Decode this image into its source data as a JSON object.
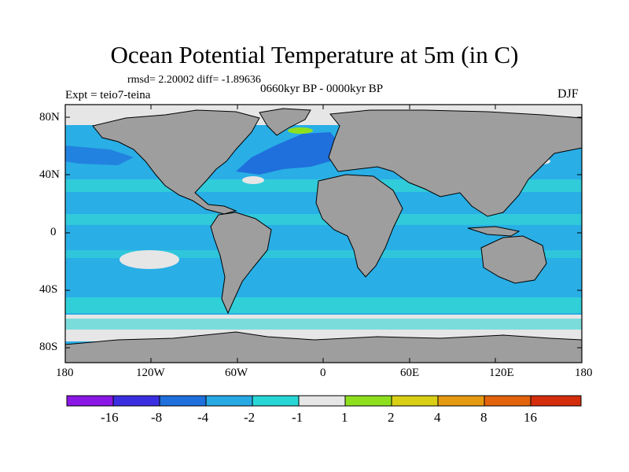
{
  "title": "Ocean Potential Temperature at 5m (in C)",
  "stats": "rmsd= 2.20002 diff= -1.89636",
  "experiment": "Expt = teio7-teina",
  "period": "0660kyr BP - 0000kyr BP",
  "season": "DJF",
  "lat_labels": [
    "80N",
    "40N",
    "0",
    "40S",
    "80S"
  ],
  "lon_labels": [
    "180",
    "120W",
    "60W",
    "0",
    "60E",
    "120E",
    "180"
  ],
  "colorbar": {
    "colors": [
      "#8a17e6",
      "#3a2ee0",
      "#1f6fdc",
      "#27a9e4",
      "#29d6d6",
      "#e6e6e6",
      "#8ee01f",
      "#d9cf15",
      "#e59a12",
      "#e2630c",
      "#d42d0b"
    ],
    "labels": [
      "-16",
      "-8",
      "-4",
      "-2",
      "-1",
      "1",
      "2",
      "4",
      "8",
      "16"
    ]
  },
  "colors": {
    "land": "#9e9e9e",
    "ocean_base": "#29aee6",
    "band_light": "#33d6d6",
    "band_dark": "#1f6fdc",
    "sea_ice": "#e6e6e6",
    "frame": "#000000"
  }
}
